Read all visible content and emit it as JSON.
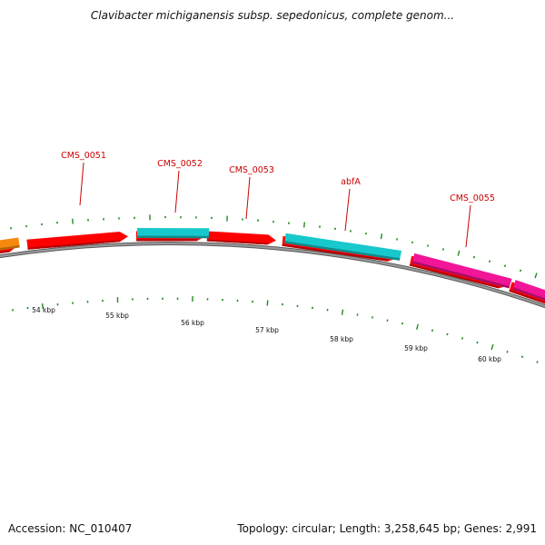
{
  "title": "Clavibacter michiganensis subsp. sepedonicus, complete genom...",
  "footer": {
    "accession": "Accession: NC_010407",
    "topology": "Topology: circular; Length: 3,258,645 bp; Genes: 2,991"
  },
  "colors": {
    "cds": "#ff0000",
    "cds_dark": "#b20000",
    "trna": "#f68a0f",
    "cyan": "#17c9cc",
    "cyan_dark": "#0f8a8c",
    "magenta": "#f21597",
    "magenta_dark": "#a80d68",
    "label": "#cc0000",
    "backbone": "#888888",
    "tick": "#228b22"
  },
  "genes": [
    {
      "label": "CMS_0051"
    },
    {
      "label": "CMS_0052"
    },
    {
      "label": "CMS_0053"
    },
    {
      "label": "abfA"
    },
    {
      "label": "CMS_0055"
    }
  ],
  "ticks": [
    {
      "label": "54 kbp"
    },
    {
      "label": "55 kbp"
    },
    {
      "label": "56 kbp"
    },
    {
      "label": "57 kbp"
    },
    {
      "label": "58 kbp"
    },
    {
      "label": "59 kbp"
    },
    {
      "label": "60 kbp"
    }
  ]
}
